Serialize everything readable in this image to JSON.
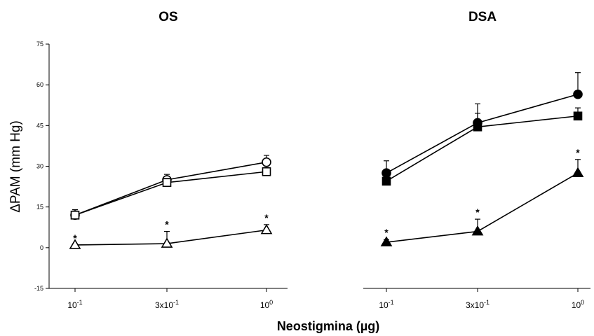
{
  "chart_data": [
    {
      "type": "line",
      "title": "OS",
      "xlabel": "Neostigmina (µg)",
      "ylabel": "ΔPAM (mm Hg)",
      "x_ticks": [
        "10-1",
        "3x10-1",
        "100"
      ],
      "ylim": [
        -15,
        75
      ],
      "y_ticks": [
        "-15",
        "0",
        "15",
        "30",
        "45",
        "60",
        "75"
      ],
      "grid": false,
      "series": [
        {
          "marker": "open-circle",
          "values": [
            12,
            25,
            31.5
          ],
          "error": [
            2,
            2,
            2.5
          ]
        },
        {
          "marker": "open-square",
          "values": [
            12,
            24,
            28
          ],
          "error": [
            1.5,
            1.5,
            1.5
          ]
        },
        {
          "marker": "open-triangle",
          "values": [
            1,
            1.5,
            6.5
          ],
          "error": [
            0,
            4.5,
            2
          ],
          "annotations": [
            "*",
            "*",
            "*"
          ]
        }
      ]
    },
    {
      "type": "line",
      "title": "DSA",
      "xlabel": "Neostigmina (µg)",
      "ylabel": "ΔPAM (mm Hg)",
      "x_ticks": [
        "10-1",
        "3x10-1",
        "100"
      ],
      "ylim": [
        -15,
        75
      ],
      "grid": false,
      "series": [
        {
          "marker": "filled-circle",
          "values": [
            27.5,
            46,
            56.5
          ],
          "error": [
            4.5,
            7,
            8
          ]
        },
        {
          "marker": "filled-square",
          "values": [
            24.5,
            44.5,
            48.5
          ],
          "error": [
            3,
            5,
            3
          ]
        },
        {
          "marker": "filled-triangle",
          "values": [
            2,
            6,
            27.5
          ],
          "error": [
            1,
            4.5,
            5
          ],
          "annotations": [
            "*",
            "*",
            "*"
          ]
        }
      ]
    }
  ]
}
